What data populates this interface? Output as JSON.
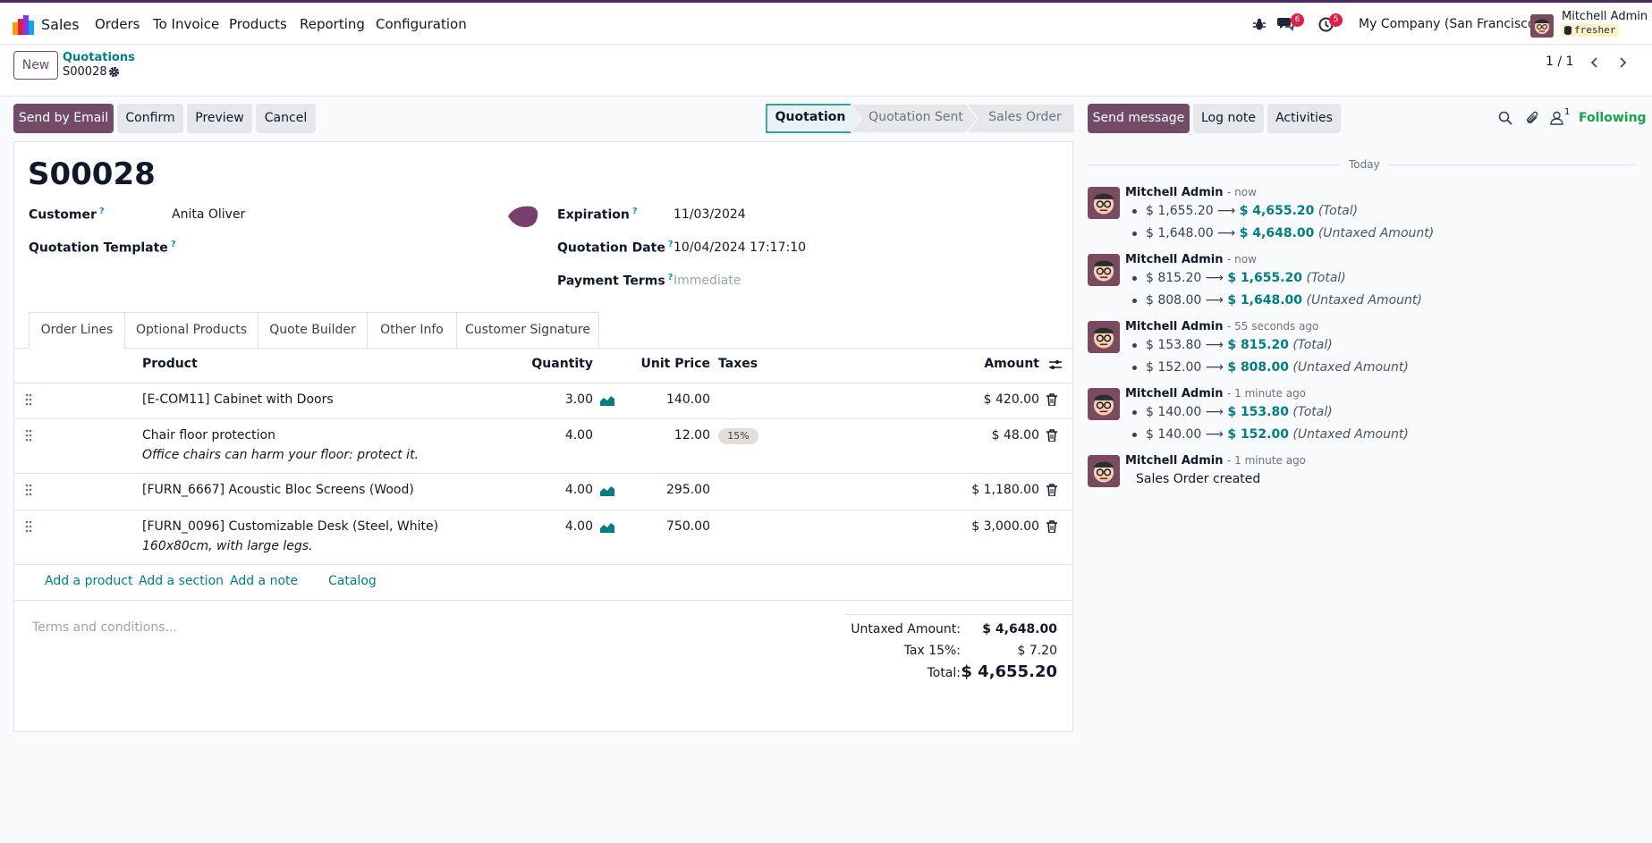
{
  "navbar": {
    "app_name": "Sales",
    "menus": [
      "Orders",
      "To Invoice",
      "Products",
      "Reporting",
      "Configuration"
    ],
    "messages_count": "6",
    "activities_count": "5",
    "company": "My Company (San Francisco)",
    "user_name": "Mitchell Admin",
    "db_name": "fresher"
  },
  "control": {
    "new_label": "New",
    "breadcrumb_parent": "Quotations",
    "breadcrumb_current": "S00028",
    "pager": "1 / 1"
  },
  "actions": {
    "send_email": "Send by Email",
    "confirm": "Confirm",
    "preview": "Preview",
    "cancel": "Cancel"
  },
  "statusbar": {
    "stages": [
      "Quotation",
      "Quotation Sent",
      "Sales Order"
    ],
    "active": "Quotation"
  },
  "form": {
    "name": "S00028",
    "customer_label": "Customer",
    "customer_value": "Anita Oliver",
    "template_label": "Quotation Template",
    "expiration_label": "Expiration",
    "expiration_value": "11/03/2024",
    "date_label": "Quotation Date",
    "date_value": "10/04/2024 17:17:10",
    "terms_label": "Payment Terms",
    "terms_placeholder": "Immediate",
    "help_mark": "?"
  },
  "tabs": [
    "Order Lines",
    "Optional Products",
    "Quote Builder",
    "Other Info",
    "Customer Signature"
  ],
  "lines": {
    "headers": {
      "product": "Product",
      "quantity": "Quantity",
      "unit_price": "Unit Price",
      "taxes": "Taxes",
      "amount": "Amount"
    },
    "rows": [
      {
        "product": "[E-COM11] Cabinet with Doors",
        "quantity": "3.00",
        "unit_price": "140.00",
        "tax": "",
        "amount": "$ 420.00",
        "note": ""
      },
      {
        "product": "Chair floor protection",
        "quantity": "4.00",
        "unit_price": "12.00",
        "tax": "15%",
        "amount": "$ 48.00",
        "note": "Office chairs can harm your floor: protect it."
      },
      {
        "product": "[FURN_6667] Acoustic Bloc Screens (Wood)",
        "quantity": "4.00",
        "unit_price": "295.00",
        "tax": "",
        "amount": "$ 1,180.00",
        "note": ""
      },
      {
        "product": "[FURN_0096] Customizable Desk (Steel, White)",
        "quantity": "4.00",
        "unit_price": "750.00",
        "tax": "",
        "amount": "$ 3,000.00",
        "note": "160x80cm, with large legs."
      }
    ],
    "add_product": "Add a product",
    "add_section": "Add a section",
    "add_note": "Add a note",
    "catalog": "Catalog"
  },
  "terms_placeholder": "Terms and conditions...",
  "totals": {
    "untaxed_label": "Untaxed Amount:",
    "untaxed_value": "$ 4,648.00",
    "tax_label": "Tax 15%:",
    "tax_value": "$ 7.20",
    "total_label": "Total:",
    "total_value": "$ 4,655.20"
  },
  "chatter": {
    "send_message": "Send message",
    "log_note": "Log note",
    "activities": "Activities",
    "followers_count": "1",
    "following": "Following",
    "date_separator": "Today",
    "messages": [
      {
        "author": "Mitchell Admin",
        "time": "- now",
        "changes": [
          {
            "old": "$ 1,655.20",
            "new": "$ 4,655.20",
            "field": "(Total)"
          },
          {
            "old": "$ 1,648.00",
            "new": "$ 4,648.00",
            "field": "(Untaxed Amount)"
          }
        ]
      },
      {
        "author": "Mitchell Admin",
        "time": "- now",
        "changes": [
          {
            "old": "$ 815.20",
            "new": "$ 1,655.20",
            "field": "(Total)"
          },
          {
            "old": "$ 808.00",
            "new": "$ 1,648.00",
            "field": "(Untaxed Amount)"
          }
        ]
      },
      {
        "author": "Mitchell Admin",
        "time": "- 55 seconds ago",
        "changes": [
          {
            "old": "$ 153.80",
            "new": "$ 815.20",
            "field": "(Total)"
          },
          {
            "old": "$ 152.00",
            "new": "$ 808.00",
            "field": "(Untaxed Amount)"
          }
        ]
      },
      {
        "author": "Mitchell Admin",
        "time": "- 1 minute ago",
        "changes": [
          {
            "old": "$ 140.00",
            "new": "$ 153.80",
            "field": "(Total)"
          },
          {
            "old": "$ 140.00",
            "new": "$ 152.00",
            "field": "(Untaxed Amount)"
          }
        ]
      },
      {
        "author": "Mitchell Admin",
        "time": "- 1 minute ago",
        "body": "Sales Order created"
      }
    ]
  },
  "colors": {
    "brand": "#714b67",
    "link": "#017e84",
    "badge": "#e11d48"
  }
}
